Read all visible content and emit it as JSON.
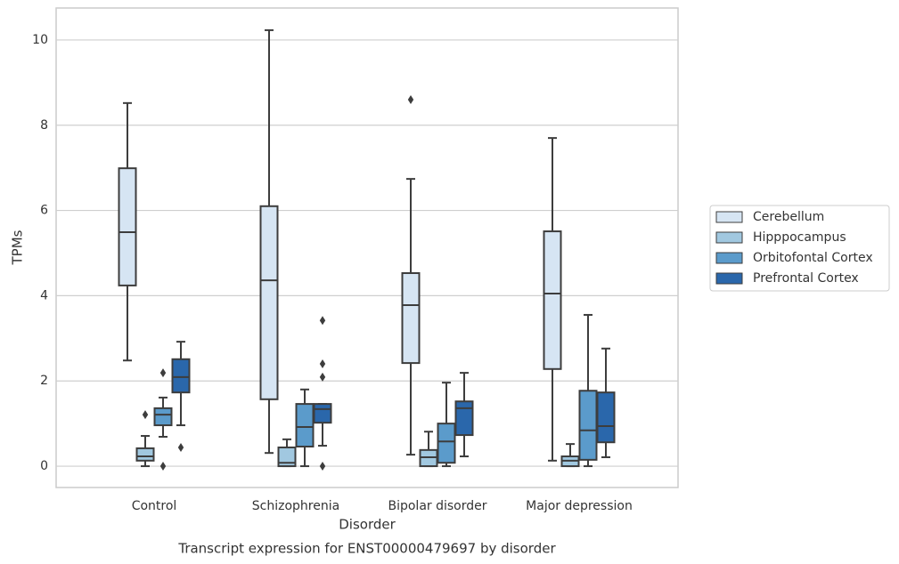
{
  "chart_data": {
    "type": "box",
    "title": "Transcript expression for ENST00000479697 by disorder",
    "x_label": "Disorder",
    "y_label": "TPMs",
    "categories": [
      "Control",
      "Schizophrenia",
      "Bipolar disorder",
      "Major depression"
    ],
    "ylim": [
      -0.5,
      10.75
    ],
    "yticks": [
      0,
      2,
      4,
      6,
      8,
      10
    ],
    "grid": true,
    "legend_position": "right",
    "series": [
      {
        "name": "Cerebellum",
        "color": "#d6e5f3",
        "values": [
          {
            "min": 2.48,
            "q1": 4.24,
            "median": 5.49,
            "q3": 6.99,
            "max": 8.52,
            "outliers": []
          },
          {
            "min": 0.31,
            "q1": 1.57,
            "median": 4.36,
            "q3": 6.1,
            "max": 10.23,
            "outliers": []
          },
          {
            "min": 0.27,
            "q1": 2.42,
            "median": 3.78,
            "q3": 4.53,
            "max": 6.74,
            "outliers": [
              8.6
            ]
          },
          {
            "min": 0.13,
            "q1": 2.28,
            "median": 4.05,
            "q3": 5.51,
            "max": 7.7,
            "outliers": []
          }
        ]
      },
      {
        "name": "Hipppocampus",
        "color": "#a1c8e0",
        "values": [
          {
            "min": 0,
            "q1": 0.13,
            "median": 0.23,
            "q3": 0.42,
            "max": 0.71,
            "outliers": [
              1.21
            ]
          },
          {
            "min": 0,
            "q1": 0,
            "median": 0.08,
            "q3": 0.44,
            "max": 0.63,
            "outliers": []
          },
          {
            "min": 0,
            "q1": 0,
            "median": 0.21,
            "q3": 0.38,
            "max": 0.81,
            "outliers": []
          },
          {
            "min": 0,
            "q1": 0,
            "median": 0.13,
            "q3": 0.23,
            "max": 0.52,
            "outliers": []
          }
        ]
      },
      {
        "name": "Orbitofontal Cortex",
        "color": "#5b9bcb",
        "values": [
          {
            "min": 0.69,
            "q1": 0.96,
            "median": 1.21,
            "q3": 1.36,
            "max": 1.61,
            "outliers": [
              2.19,
              0
            ]
          },
          {
            "min": 0,
            "q1": 0.46,
            "median": 0.92,
            "q3": 1.46,
            "max": 1.8,
            "outliers": []
          },
          {
            "min": 0,
            "q1": 0.08,
            "median": 0.58,
            "q3": 1.0,
            "max": 1.96,
            "outliers": []
          },
          {
            "min": 0,
            "q1": 0.15,
            "median": 0.84,
            "q3": 1.77,
            "max": 3.55,
            "outliers": []
          }
        ]
      },
      {
        "name": "Prefrontal Cortex",
        "color": "#2a67ab",
        "values": [
          {
            "min": 0.96,
            "q1": 1.73,
            "median": 2.09,
            "q3": 2.51,
            "max": 2.92,
            "outliers": [
              0.44
            ]
          },
          {
            "min": 0.48,
            "q1": 1.02,
            "median": 1.34,
            "q3": 1.46,
            "max": 1.46,
            "outliers": [
              3.42,
              2.4,
              2.09,
              0
            ]
          },
          {
            "min": 0.23,
            "q1": 0.73,
            "median": 1.36,
            "q3": 1.52,
            "max": 2.19,
            "outliers": []
          },
          {
            "min": 0.21,
            "q1": 0.56,
            "median": 0.94,
            "q3": 1.73,
            "max": 2.76,
            "outliers": []
          }
        ]
      }
    ]
  }
}
